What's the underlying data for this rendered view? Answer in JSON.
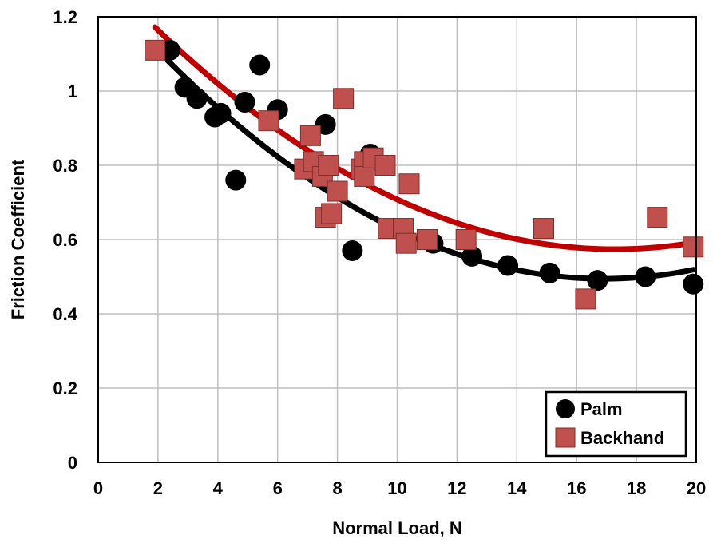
{
  "chart_data": {
    "type": "scatter",
    "xlabel": "Normal Load, N",
    "ylabel": "Friction Coefficient",
    "xlim": [
      0,
      20
    ],
    "ylim": [
      0,
      1.2
    ],
    "x_ticks": [
      "0",
      "2",
      "4",
      "6",
      "8",
      "10",
      "12",
      "14",
      "16",
      "18",
      "20"
    ],
    "y_ticks": [
      "0",
      "0.2",
      "0.4",
      "0.6",
      "0.8",
      "1",
      "1.2"
    ],
    "grid": true,
    "legend_position": "bottom-right",
    "series": [
      {
        "name": "Palm",
        "marker": "circle",
        "color": "#000000",
        "points": [
          [
            2.4,
            1.11
          ],
          [
            2.9,
            1.01
          ],
          [
            3.3,
            0.98
          ],
          [
            3.9,
            0.93
          ],
          [
            4.1,
            0.94
          ],
          [
            4.6,
            0.76
          ],
          [
            4.9,
            0.97
          ],
          [
            5.4,
            1.07
          ],
          [
            6.0,
            0.95
          ],
          [
            7.6,
            0.91
          ],
          [
            8.5,
            0.57
          ],
          [
            9.1,
            0.83
          ],
          [
            11.2,
            0.59
          ],
          [
            12.5,
            0.555
          ],
          [
            13.7,
            0.53
          ],
          [
            15.1,
            0.51
          ],
          [
            16.7,
            0.49
          ],
          [
            18.3,
            0.5
          ],
          [
            19.9,
            0.48
          ]
        ],
        "trend": {
          "type": "quadratic",
          "x_range": [
            2.0,
            19.9
          ],
          "coefficients": [
            1.2845,
            -0.0934,
            0.00276
          ]
        }
      },
      {
        "name": "Backhand",
        "marker": "square",
        "color": "#c0504d",
        "points": [
          [
            1.9,
            1.11
          ],
          [
            5.7,
            0.92
          ],
          [
            6.9,
            0.79
          ],
          [
            7.1,
            0.88
          ],
          [
            7.2,
            0.81
          ],
          [
            7.5,
            0.77
          ],
          [
            7.6,
            0.66
          ],
          [
            7.7,
            0.8
          ],
          [
            7.8,
            0.67
          ],
          [
            8.0,
            0.73
          ],
          [
            8.2,
            0.98
          ],
          [
            8.8,
            0.79
          ],
          [
            8.9,
            0.81
          ],
          [
            8.9,
            0.77
          ],
          [
            9.2,
            0.82
          ],
          [
            9.6,
            0.8
          ],
          [
            9.7,
            0.63
          ],
          [
            10.2,
            0.63
          ],
          [
            10.3,
            0.59
          ],
          [
            10.4,
            0.75
          ],
          [
            11.0,
            0.6
          ],
          [
            12.3,
            0.6
          ],
          [
            14.9,
            0.63
          ],
          [
            16.3,
            0.44
          ],
          [
            18.7,
            0.66
          ],
          [
            19.9,
            0.58
          ]
        ],
        "trend": {
          "type": "quadratic",
          "x_range": [
            1.9,
            19.9
          ],
          "coefficients": [
            1.3289,
            -0.0874,
            0.00253
          ]
        }
      }
    ]
  }
}
